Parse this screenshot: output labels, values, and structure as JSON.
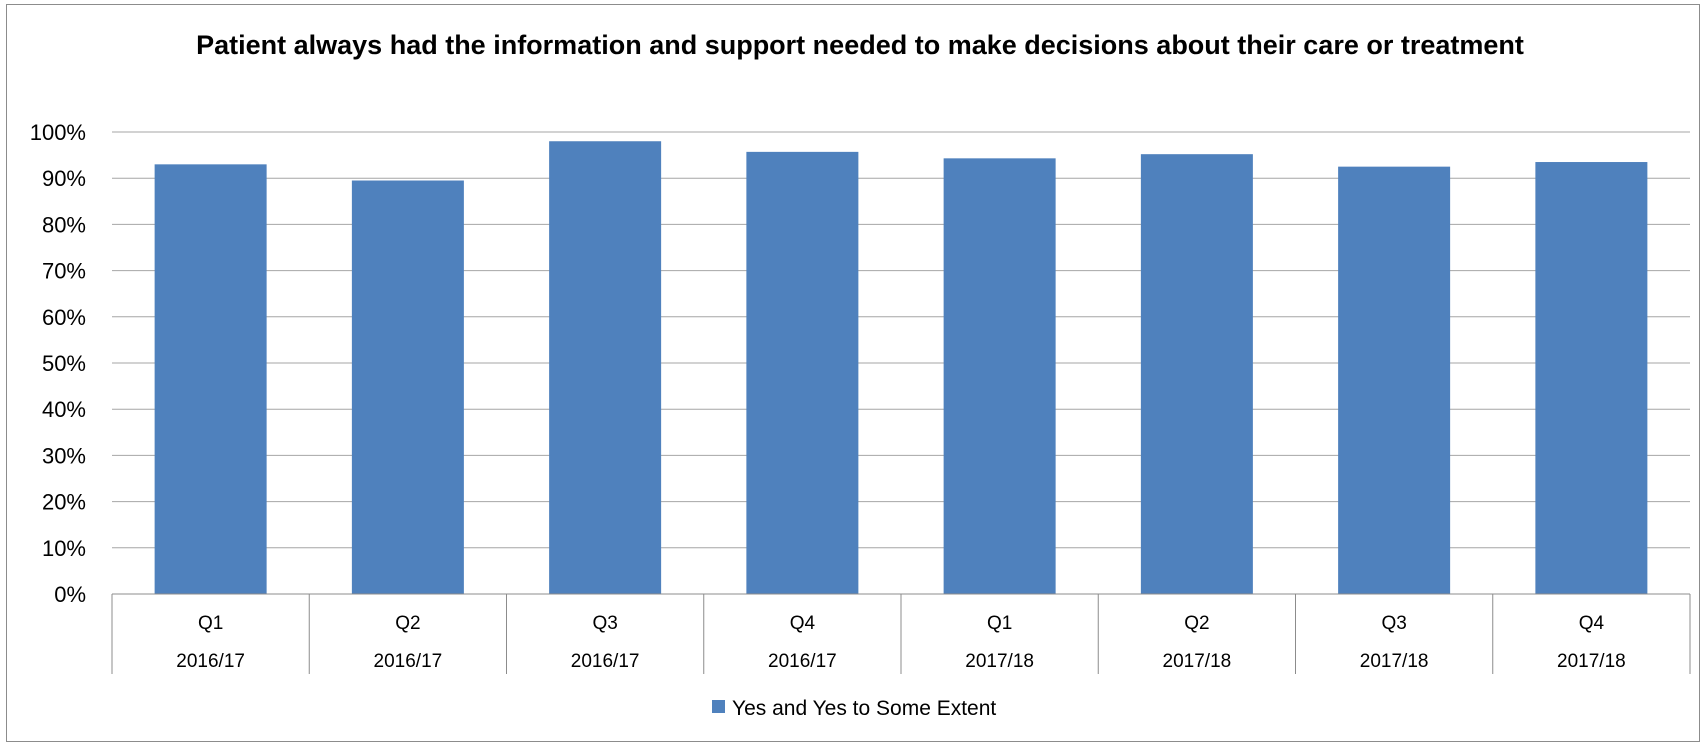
{
  "chart_data": {
    "type": "bar",
    "title": "Patient always had the information and support needed to make decisions about their care or treatment",
    "xlabel": "",
    "ylabel": "",
    "ylim": [
      0,
      100
    ],
    "ytick_step": 10,
    "ytick_labels": [
      "0%",
      "10%",
      "20%",
      "30%",
      "40%",
      "50%",
      "60%",
      "70%",
      "80%",
      "90%",
      "100%"
    ],
    "categories": [
      {
        "quarter": "Q1",
        "year": "2016/17"
      },
      {
        "quarter": "Q2",
        "year": "2016/17"
      },
      {
        "quarter": "Q3",
        "year": "2016/17"
      },
      {
        "quarter": "Q4",
        "year": "2016/17"
      },
      {
        "quarter": "Q1",
        "year": "2017/18"
      },
      {
        "quarter": "Q2",
        "year": "2017/18"
      },
      {
        "quarter": "Q3",
        "year": "2017/18"
      },
      {
        "quarter": "Q4",
        "year": "2017/18"
      }
    ],
    "series": [
      {
        "name": "Yes and Yes to Some Extent",
        "color": "#4f81bd",
        "values": [
          93,
          89.5,
          98,
          95.7,
          94.3,
          95.2,
          92.5,
          93.5
        ]
      }
    ],
    "grid": true,
    "legend_position": "bottom"
  }
}
